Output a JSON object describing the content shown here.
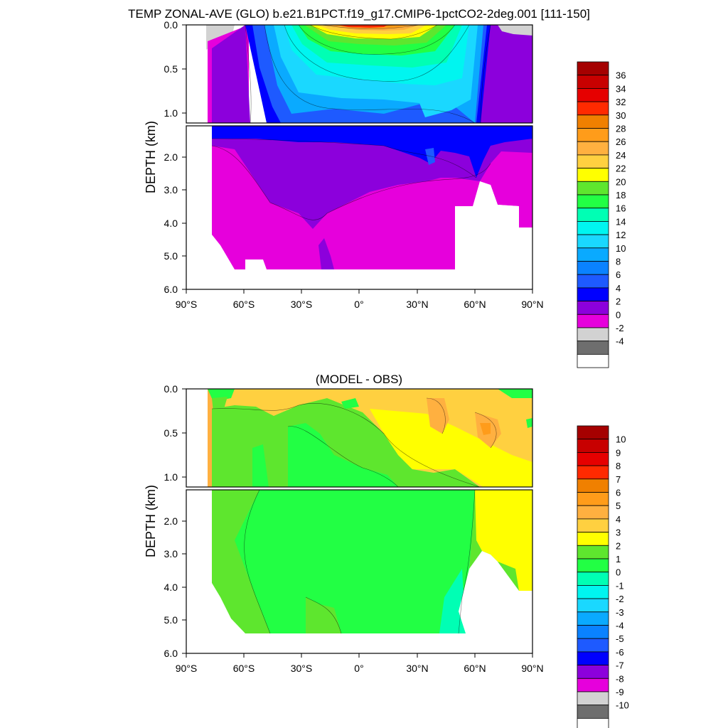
{
  "chart_data": [
    {
      "type": "heatmap",
      "title": "TEMP ZONAL-AVE (GLO) b.e21.B1PCT.f19_g17.CMIP6-1pctCO2-2deg.001 [111-150]",
      "ylabel": "DEPTH (km)",
      "xlabel": "",
      "x_ticks": [
        "90°S",
        "60°S",
        "30°S",
        "0°",
        "30°N",
        "60°N",
        "90°N"
      ],
      "x_range": [
        -90,
        90
      ],
      "upper_y_ticks": [
        "0.0",
        "0.5",
        "1.0"
      ],
      "upper_y_range": [
        0.0,
        1.1
      ],
      "lower_y_ticks": [
        "2.0",
        "3.0",
        "4.0",
        "5.0",
        "6.0"
      ],
      "lower_y_range": [
        1.1,
        6.0
      ],
      "colorbar": {
        "labels": [
          "36",
          "34",
          "32",
          "30",
          "28",
          "26",
          "24",
          "22",
          "20",
          "18",
          "16",
          "14",
          "12",
          "10",
          "8",
          "6",
          "4",
          "2",
          "0",
          "-2",
          "-4"
        ],
        "colors": [
          "#a50000",
          "#c80000",
          "#e60000",
          "#ff2a00",
          "#f08000",
          "#ff9c1a",
          "#ffb040",
          "#ffd040",
          "#ffff00",
          "#5ee62e",
          "#22ff44",
          "#00ffb4",
          "#00f5f0",
          "#1ad8ff",
          "#0aaaff",
          "#0a82ff",
          "#1e5aff",
          "#0000ff",
          "#8c00dc",
          "#e600dc",
          "#d2d2d2",
          "#6e6e6e",
          "#ffffff"
        ]
      }
    },
    {
      "type": "heatmap",
      "title": "(MODEL - OBS)",
      "ylabel": "DEPTH (km)",
      "xlabel": "",
      "x_ticks": [
        "90°S",
        "60°S",
        "30°S",
        "0°",
        "30°N",
        "60°N",
        "90°N"
      ],
      "x_range": [
        -90,
        90
      ],
      "upper_y_ticks": [
        "0.0",
        "0.5",
        "1.0"
      ],
      "upper_y_range": [
        0.0,
        1.1
      ],
      "lower_y_ticks": [
        "2.0",
        "3.0",
        "4.0",
        "5.0",
        "6.0"
      ],
      "lower_y_range": [
        1.1,
        6.0
      ],
      "colorbar": {
        "labels": [
          "10",
          "9",
          "8",
          "7",
          "6",
          "5",
          "4",
          "3",
          "2",
          "1",
          "0",
          "-1",
          "-2",
          "-3",
          "-4",
          "-5",
          "-6",
          "-7",
          "-8",
          "-9",
          "-10"
        ],
        "colors": [
          "#a50000",
          "#c80000",
          "#e60000",
          "#ff2a00",
          "#f08000",
          "#ff9c1a",
          "#ffb040",
          "#ffd040",
          "#ffff00",
          "#5ee62e",
          "#22ff44",
          "#00ffb4",
          "#00f5f0",
          "#1ad8ff",
          "#0aaaff",
          "#0a82ff",
          "#1e5aff",
          "#0000ff",
          "#8c00dc",
          "#e600dc",
          "#d2d2d2",
          "#6e6e6e",
          "#ffffff"
        ]
      }
    }
  ]
}
